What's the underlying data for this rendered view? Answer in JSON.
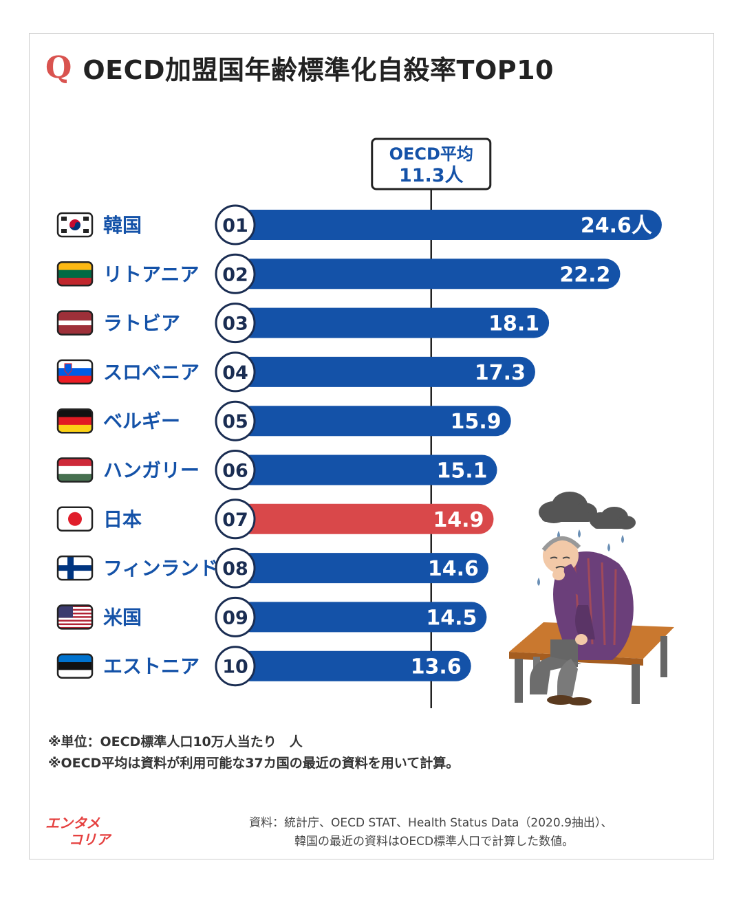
{
  "title": {
    "q": "Q",
    "text": "OECD加盟国年齢標準化自殺率TOP10"
  },
  "chart_data": {
    "type": "bar",
    "orientation": "horizontal",
    "title": "OECD加盟国年齢標準化自殺率TOP10",
    "unit": "人",
    "average": {
      "label": "OECD平均",
      "value_label": "11.3人",
      "value": 11.3
    },
    "categories": [
      "韓国",
      "リトアニア",
      "ラトビア",
      "スロベニア",
      "ベルギー",
      "ハンガリー",
      "日本",
      "フィンランド",
      "米国",
      "エストニア"
    ],
    "ranks": [
      "01",
      "02",
      "03",
      "04",
      "05",
      "06",
      "07",
      "08",
      "09",
      "10"
    ],
    "values": [
      24.6,
      22.2,
      18.1,
      17.3,
      15.9,
      15.1,
      14.9,
      14.6,
      14.5,
      13.6
    ],
    "value_labels": [
      "24.6人",
      "22.2",
      "18.1",
      "17.3",
      "15.9",
      "15.1",
      "14.9",
      "14.6",
      "14.5",
      "13.6"
    ],
    "highlight": "日本",
    "colors": {
      "bar": "#1452a8",
      "highlight": "#d9484a",
      "rank_circle": "#1a2d52",
      "country_text": "#1452a8"
    },
    "flags": [
      "south-korea-flag",
      "lithuania-flag",
      "latvia-flag",
      "slovenia-flag",
      "belgium-flag",
      "hungary-flag",
      "japan-flag",
      "finland-flag",
      "usa-flag",
      "estonia-flag"
    ]
  },
  "notes": {
    "line1": "※単位：OECD標準人口10万人当たり　人",
    "line2": "※OECD平均は資料が利用可能な37カ国の最近の資料を用いて計算。"
  },
  "source": {
    "line1": "資料：統計庁、OECD STAT、Health Status Data（2020.9抽出）、",
    "line2": "韓国の最近の資料はOECD標準人口で計算した数値。"
  },
  "logo": {
    "line1": "エンタメ",
    "line2": "コリア",
    "color": "#e5403f"
  },
  "illustration": {
    "name": "sad-man-on-bench-icon"
  }
}
